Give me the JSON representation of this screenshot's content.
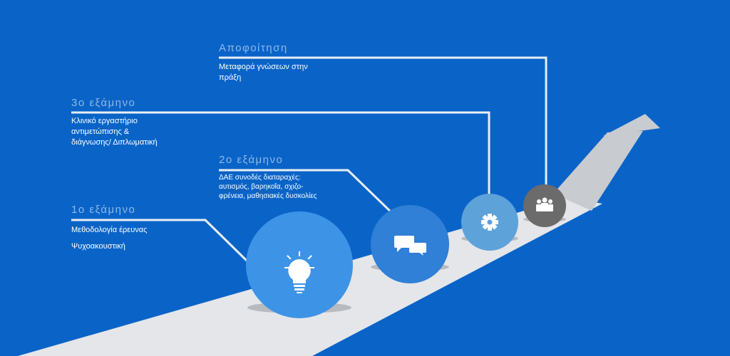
{
  "stages": [
    {
      "title": "1ο εξάμηνο",
      "lines": [
        "Μεθοδολογία έρευνας",
        "Ψυχοακουστική"
      ],
      "icon": "lightbulb-icon"
    },
    {
      "title": "2ο εξάμηνο",
      "lines": [
        "ΔΑΕ συνοδές διαταραχές:",
        "αυτισμός, βαρηκοΐα, σχιζο-",
        "φρένεια, μαθησιακές δυσκολίες"
      ],
      "icon": "chat-bubbles-icon"
    },
    {
      "title": "3ο εξάμηνο",
      "lines": [
        "Κλινικό εργαστήριο",
        "αντιμετώπισης &",
        "διάγνωσης/ Διπλωματική"
      ],
      "icon": "gear-icon"
    },
    {
      "title": "Αποφοίτηση",
      "lines": [
        "Μεταφορά γνώσεων στην",
        "πράξη"
      ],
      "icon": "group-icon"
    }
  ],
  "colors": {
    "background": "#0a64c8",
    "road": "#e4e6ea",
    "arrow": "#c8cbcf",
    "circle1": "#3d94e6",
    "circle2": "#2f80d6",
    "circle3": "#5ea2da",
    "circle4": "#6b6b6b",
    "connector": "#e9eef5"
  }
}
